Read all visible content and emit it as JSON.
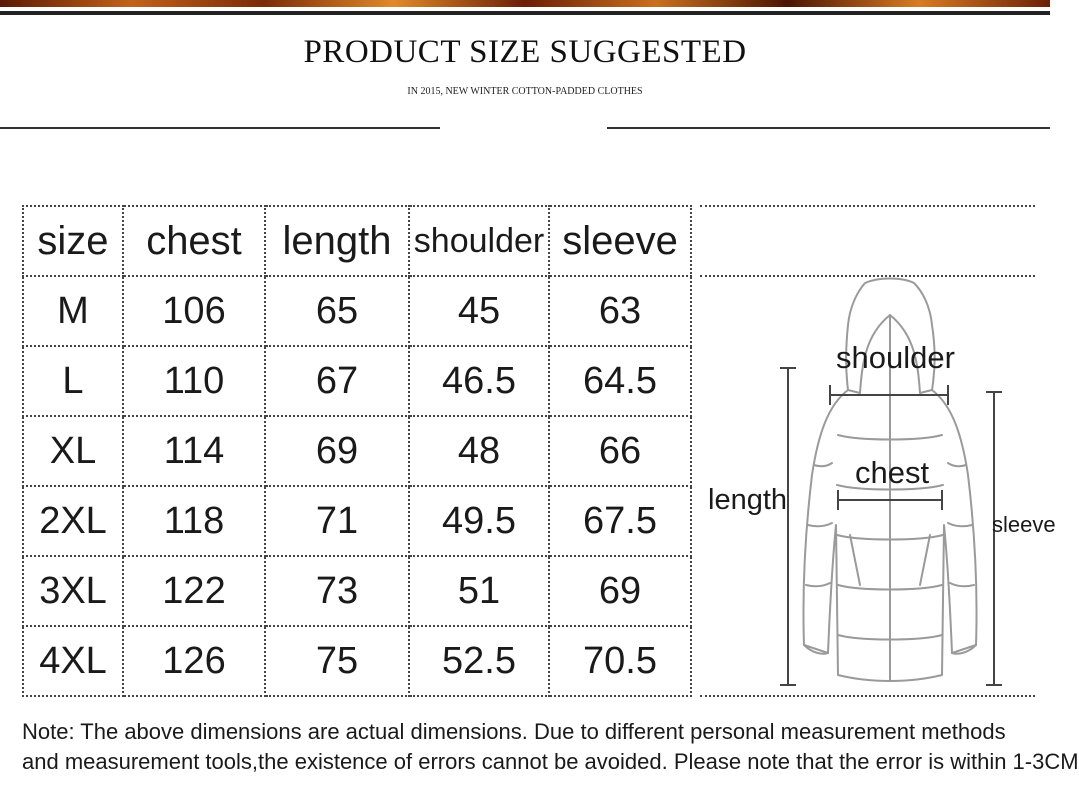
{
  "header": {
    "title": "PRODUCT SIZE SUGGESTED",
    "subtitle": "IN 2015, NEW WINTER COTTON-PADDED CLOTHES"
  },
  "table": {
    "headers": [
      "size",
      "chest",
      "length",
      "shoulder",
      "sleeve"
    ],
    "rows": [
      [
        "M",
        "106",
        "65",
        "45",
        "63"
      ],
      [
        "L",
        "110",
        "67",
        "46.5",
        "64.5"
      ],
      [
        "XL",
        "114",
        "69",
        "48",
        "66"
      ],
      [
        "2XL",
        "118",
        "71",
        "49.5",
        "67.5"
      ],
      [
        "3XL",
        "122",
        "73",
        "51",
        "69"
      ],
      [
        "4XL",
        "126",
        "75",
        "52.5",
        "70.5"
      ]
    ]
  },
  "diagram": {
    "shoulder_label": "shoulder",
    "chest_label": "chest",
    "length_label": "length",
    "sleeve_label": "sleeve",
    "image": "hooded-padded-jacket-sketch"
  },
  "note": {
    "line1": "Note: The above dimensions are actual dimensions. Due to different personal measurement methods",
    "line2": "and measurement tools,the existence of errors cannot be avoided. Please note that the error is within 1-3CM"
  },
  "colors": {
    "banner": "#c2621a",
    "rule": "#222222",
    "text": "#1a1a1a"
  }
}
